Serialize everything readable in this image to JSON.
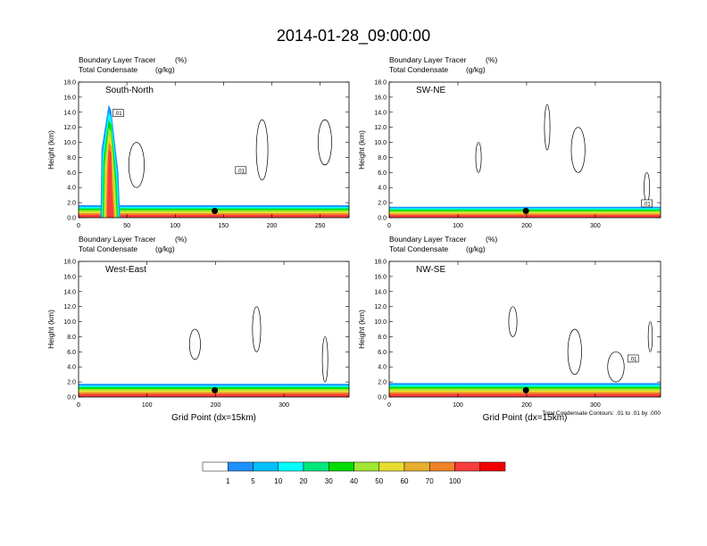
{
  "title": "2014-01-28_09:00:00",
  "footnote": "Total Condensate Contours: .01 to .01 by .000",
  "chart_data": [
    {
      "type": "heatmap",
      "panel_label": "South-North",
      "subtitle_left_1": "Boundary Layer Tracer",
      "subtitle_right_1": "(%)",
      "subtitle_left_2": "Total Condensate",
      "subtitle_right_2": "(g/kg)",
      "ylabel": "Height (km)",
      "xlabel": "",
      "xlim": [
        0,
        280
      ],
      "ylim": [
        0,
        18
      ],
      "xticks": [
        0,
        50,
        100,
        150,
        200,
        250
      ],
      "xtick_labels": [
        "0",
        "50",
        "100",
        "150",
        "200",
        "250"
      ],
      "yticks": [
        0,
        2,
        4,
        6,
        8,
        10,
        12,
        14,
        16,
        18
      ],
      "ytick_labels": [
        "0.0",
        "2.0",
        "4.0",
        "6.0",
        "8.0",
        "10.0",
        "12.0",
        "14.0",
        "16.0",
        "18.0"
      ],
      "contour_labels": [
        {
          "x": 41,
          "y": 13.9,
          "text": ".01"
        },
        {
          "x": 168,
          "y": 6.3,
          "text": ".01"
        }
      ],
      "marker": {
        "x": 141,
        "y": 0.9
      },
      "boundary_layer_top_km": 1.5,
      "plume": {
        "x_center": 32,
        "top_km": 15.0
      }
    },
    {
      "type": "heatmap",
      "panel_label": "SW-NE",
      "subtitle_left_1": "Boundary Layer Tracer",
      "subtitle_right_1": "(%)",
      "subtitle_left_2": "Total Condensate",
      "subtitle_right_2": "(g/kg)",
      "ylabel": "Height (km)",
      "xlabel": "",
      "xlim": [
        0,
        395
      ],
      "ylim": [
        0,
        18
      ],
      "xticks": [
        0,
        100,
        200,
        300
      ],
      "xtick_labels": [
        "0",
        "100",
        "200",
        "300"
      ],
      "yticks": [
        0,
        2,
        4,
        6,
        8,
        10,
        12,
        14,
        16,
        18
      ],
      "ytick_labels": [
        "0.0",
        "2.0",
        "4.0",
        "6.0",
        "8.0",
        "10.0",
        "12.0",
        "14.0",
        "16.0",
        "18.0"
      ],
      "contour_labels": [
        {
          "x": 375,
          "y": 1.9,
          "text": ".01"
        }
      ],
      "marker": {
        "x": 199,
        "y": 0.9
      },
      "boundary_layer_top_km": 1.3
    },
    {
      "type": "heatmap",
      "panel_label": "West-East",
      "subtitle_left_1": "Boundary Layer Tracer",
      "subtitle_right_1": "(%)",
      "subtitle_left_2": "Total Condensate",
      "subtitle_right_2": "(g/kg)",
      "ylabel": "Height (km)",
      "xlabel": "Grid Point (dx=15km)",
      "xlim": [
        0,
        395
      ],
      "ylim": [
        0,
        18
      ],
      "xticks": [
        0,
        100,
        200,
        300
      ],
      "xtick_labels": [
        "0",
        "100",
        "200",
        "300"
      ],
      "yticks": [
        0,
        2,
        4,
        6,
        8,
        10,
        12,
        14,
        16,
        18
      ],
      "ytick_labels": [
        "0.0",
        "2.0",
        "4.0",
        "6.0",
        "8.0",
        "10.0",
        "12.0",
        "14.0",
        "16.0",
        "18.0"
      ],
      "contour_labels": [],
      "marker": {
        "x": 199,
        "y": 0.9
      },
      "boundary_layer_top_km": 1.6
    },
    {
      "type": "heatmap",
      "panel_label": "NW-SE",
      "subtitle_left_1": "Boundary Layer Tracer",
      "subtitle_right_1": "(%)",
      "subtitle_left_2": "Total Condensate",
      "subtitle_right_2": "(g/kg)",
      "ylabel": "Height (km)",
      "xlabel": "Grid Point (dx=15km)",
      "xlim": [
        0,
        395
      ],
      "ylim": [
        0,
        18
      ],
      "xticks": [
        0,
        100,
        200,
        300
      ],
      "xtick_labels": [
        "0",
        "100",
        "200",
        "300"
      ],
      "yticks": [
        0,
        2,
        4,
        6,
        8,
        10,
        12,
        14,
        16,
        18
      ],
      "ytick_labels": [
        "0.0",
        "2.0",
        "4.0",
        "6.0",
        "8.0",
        "10.0",
        "12.0",
        "14.0",
        "16.0",
        "18.0"
      ],
      "contour_labels": [
        {
          "x": 355,
          "y": 5.1,
          "text": ".01"
        }
      ],
      "marker": {
        "x": 199,
        "y": 0.9
      },
      "boundary_layer_top_km": 1.7
    }
  ],
  "colorbar": {
    "labels": [
      "1",
      "5",
      "10",
      "20",
      "30",
      "40",
      "50",
      "60",
      "70",
      "100"
    ],
    "colors": [
      "#ffffff",
      "#1e90ff",
      "#00c0ff",
      "#00ffff",
      "#00e87a",
      "#00dd00",
      "#a0e632",
      "#e6dc32",
      "#e6af2d",
      "#f08228",
      "#fa3c3c",
      "#f00000"
    ]
  }
}
